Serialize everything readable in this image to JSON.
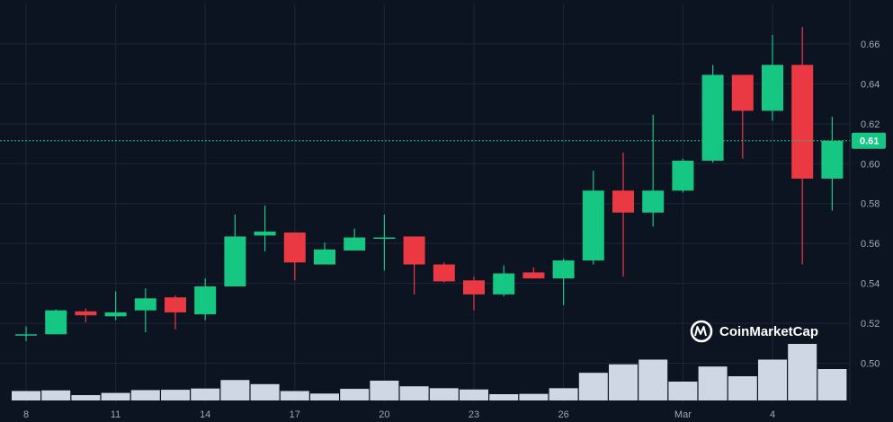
{
  "watermark": "CoinMarketCap",
  "colors": {
    "background": "#0d1421",
    "grid": "#1e2636",
    "up": "#16c784",
    "down": "#ea3943",
    "volume": "#cfd6e4",
    "axis_text": "#a1a7bb",
    "current_line": "#16c784"
  },
  "current_price": {
    "value": 0.6115,
    "label": "0.61"
  },
  "chart_data": {
    "type": "candlestick",
    "ylim": [
      0.48,
      0.676
    ],
    "y_ticks": [
      0.5,
      0.52,
      0.54,
      0.56,
      0.58,
      0.6,
      0.62,
      0.64,
      0.66
    ],
    "y_tick_labels": [
      "0.50",
      "0.52",
      "0.54",
      "0.56",
      "0.58",
      "0.60",
      "0.62",
      "0.64",
      "0.66"
    ],
    "x_ticks": [
      {
        "index": 0,
        "label": "8"
      },
      {
        "index": 3,
        "label": "11"
      },
      {
        "index": 6,
        "label": "14"
      },
      {
        "index": 9,
        "label": "17"
      },
      {
        "index": 12,
        "label": "20"
      },
      {
        "index": 15,
        "label": "23"
      },
      {
        "index": 18,
        "label": "26"
      },
      {
        "index": 22,
        "label": "Mar"
      },
      {
        "index": 25,
        "label": "4"
      }
    ],
    "grid": true,
    "candles": [
      {
        "o": 0.5145,
        "h": 0.5185,
        "l": 0.511,
        "c": 0.5145,
        "v": 0.3
      },
      {
        "o": 0.5145,
        "h": 0.527,
        "l": 0.5145,
        "c": 0.5265,
        "v": 0.32
      },
      {
        "o": 0.526,
        "h": 0.5275,
        "l": 0.5205,
        "c": 0.524,
        "v": 0.17
      },
      {
        "o": 0.5235,
        "h": 0.536,
        "l": 0.5215,
        "c": 0.5255,
        "v": 0.24
      },
      {
        "o": 0.5265,
        "h": 0.5375,
        "l": 0.5155,
        "c": 0.5325,
        "v": 0.33
      },
      {
        "o": 0.533,
        "h": 0.534,
        "l": 0.517,
        "c": 0.5255,
        "v": 0.34
      },
      {
        "o": 0.5245,
        "h": 0.5425,
        "l": 0.5215,
        "c": 0.5385,
        "v": 0.38
      },
      {
        "o": 0.5385,
        "h": 0.5745,
        "l": 0.5385,
        "c": 0.5635,
        "v": 0.65
      },
      {
        "o": 0.564,
        "h": 0.579,
        "l": 0.556,
        "c": 0.566,
        "v": 0.52
      },
      {
        "o": 0.5655,
        "h": 0.5655,
        "l": 0.5415,
        "c": 0.5505,
        "v": 0.3
      },
      {
        "o": 0.5495,
        "h": 0.5605,
        "l": 0.5495,
        "c": 0.557,
        "v": 0.22
      },
      {
        "o": 0.5565,
        "h": 0.5675,
        "l": 0.5565,
        "c": 0.563,
        "v": 0.37
      },
      {
        "o": 0.5625,
        "h": 0.5745,
        "l": 0.5465,
        "c": 0.563,
        "v": 0.63
      },
      {
        "o": 0.5635,
        "h": 0.5635,
        "l": 0.5345,
        "c": 0.5495,
        "v": 0.45
      },
      {
        "o": 0.5495,
        "h": 0.5505,
        "l": 0.5405,
        "c": 0.541,
        "v": 0.39
      },
      {
        "o": 0.5415,
        "h": 0.5435,
        "l": 0.5265,
        "c": 0.5345,
        "v": 0.35
      },
      {
        "o": 0.5345,
        "h": 0.549,
        "l": 0.5335,
        "c": 0.545,
        "v": 0.2
      },
      {
        "o": 0.5455,
        "h": 0.548,
        "l": 0.5425,
        "c": 0.5425,
        "v": 0.21
      },
      {
        "o": 0.5425,
        "h": 0.5525,
        "l": 0.529,
        "c": 0.5515,
        "v": 0.39
      },
      {
        "o": 0.5515,
        "h": 0.5965,
        "l": 0.5495,
        "c": 0.5865,
        "v": 0.88
      },
      {
        "o": 0.5865,
        "h": 0.6055,
        "l": 0.5435,
        "c": 0.5755,
        "v": 1.15
      },
      {
        "o": 0.5755,
        "h": 0.6245,
        "l": 0.5685,
        "c": 0.5865,
        "v": 1.3
      },
      {
        "o": 0.5865,
        "h": 0.6025,
        "l": 0.5855,
        "c": 0.6015,
        "v": 0.6
      },
      {
        "o": 0.6015,
        "h": 0.6495,
        "l": 0.6005,
        "c": 0.6445,
        "v": 1.08
      },
      {
        "o": 0.6445,
        "h": 0.6445,
        "l": 0.6025,
        "c": 0.6265,
        "v": 0.77
      },
      {
        "o": 0.6265,
        "h": 0.6645,
        "l": 0.6215,
        "c": 0.6495,
        "v": 1.3
      },
      {
        "o": 0.6495,
        "h": 0.6685,
        "l": 0.5495,
        "c": 0.5925,
        "v": 1.8
      },
      {
        "o": 0.5925,
        "h": 0.6235,
        "l": 0.5765,
        "c": 0.6115,
        "v": 1.0
      }
    ]
  }
}
